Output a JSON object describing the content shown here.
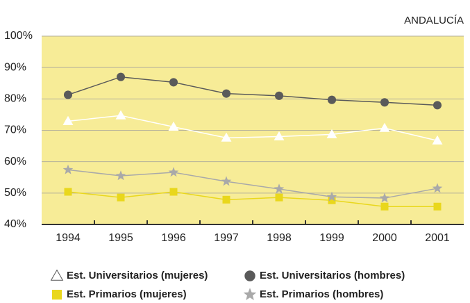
{
  "chart_data": {
    "type": "line",
    "title": "ANDALUCÍA",
    "categories": [
      "1994",
      "1995",
      "1996",
      "1997",
      "1998",
      "1999",
      "2000",
      "2001"
    ],
    "series": [
      {
        "name": "Est. Universitarios (mujeres)",
        "color": "#ffffff",
        "marker": "triangle",
        "values": [
          72.9,
          74.7,
          71.1,
          67.6,
          68,
          68.7,
          70.7,
          66.7
        ]
      },
      {
        "name": "Est. Universitarios (hombres)",
        "color": "#5a5a5a",
        "marker": "circle",
        "values": [
          81.3,
          87,
          85.3,
          81.7,
          81,
          79.7,
          78.9,
          78
        ]
      },
      {
        "name": "Est. Primarios (mujeres)",
        "color": "#e9d71c",
        "marker": "square",
        "values": [
          50.4,
          48.6,
          50.4,
          47.9,
          48.6,
          47.7,
          45.7,
          45.7
        ]
      },
      {
        "name": "Est. Primarios (hombres)",
        "color": "#a9a9a9",
        "marker": "star",
        "values": [
          57.4,
          55.5,
          56.6,
          53.7,
          51.3,
          48.8,
          48.4,
          51.5
        ]
      }
    ],
    "ylim": [
      40,
      100
    ],
    "yticks": [
      {
        "value": 40,
        "label": "40%"
      },
      {
        "value": 50,
        "label": "50%"
      },
      {
        "value": 60,
        "label": "60%"
      },
      {
        "value": 70,
        "label": "70%"
      },
      {
        "value": 80,
        "label": "80%"
      },
      {
        "value": 90,
        "label": "90%"
      },
      {
        "value": 100,
        "label": "100%"
      }
    ],
    "grid": true,
    "background": "#f7ec97"
  }
}
